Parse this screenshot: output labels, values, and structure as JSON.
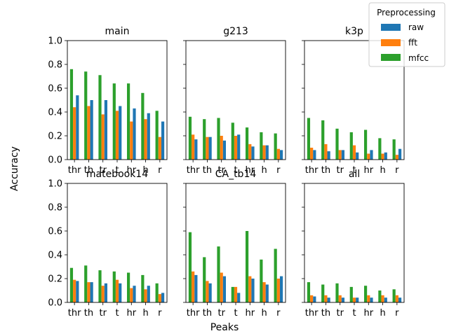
{
  "figure": {
    "ylabel": "Accuracy",
    "xlabel": "Peaks",
    "legend": {
      "title": "Preprocessing",
      "placement": "top-right",
      "entries": [
        {
          "name": "raw",
          "color": "#1f77b4"
        },
        {
          "name": "fft",
          "color": "#ff7f0e"
        },
        {
          "name": "mfcc",
          "color": "#2ca02c"
        }
      ]
    }
  },
  "chart_data": [
    {
      "type": "bar",
      "title": "main",
      "categories": [
        "thr",
        "th",
        "tr",
        "t",
        "hr",
        "h",
        "r"
      ],
      "ylim": [
        0,
        1
      ],
      "yticks": [
        "0.0",
        "0.2",
        "0.4",
        "0.6",
        "0.8",
        "1.0"
      ],
      "series": [
        {
          "name": "mfcc",
          "values": [
            0.76,
            0.74,
            0.71,
            0.64,
            0.64,
            0.56,
            0.41
          ]
        },
        {
          "name": "fft",
          "values": [
            0.44,
            0.45,
            0.38,
            0.41,
            0.32,
            0.34,
            0.19
          ]
        },
        {
          "name": "raw",
          "values": [
            0.54,
            0.5,
            0.5,
            0.45,
            0.43,
            0.39,
            0.32
          ]
        }
      ]
    },
    {
      "type": "bar",
      "title": "g213",
      "categories": [
        "thr",
        "th",
        "tr",
        "t",
        "hr",
        "h",
        "r"
      ],
      "ylim": [
        0,
        1
      ],
      "yticks": [
        "0.0",
        "0.2",
        "0.4",
        "0.6",
        "0.8",
        "1.0"
      ],
      "series": [
        {
          "name": "mfcc",
          "values": [
            0.36,
            0.34,
            0.35,
            0.31,
            0.27,
            0.23,
            0.22
          ]
        },
        {
          "name": "fft",
          "values": [
            0.21,
            0.19,
            0.2,
            0.2,
            0.13,
            0.12,
            0.09
          ]
        },
        {
          "name": "raw",
          "values": [
            0.17,
            0.19,
            0.16,
            0.21,
            0.11,
            0.12,
            0.08
          ]
        }
      ]
    },
    {
      "type": "bar",
      "title": "k3p",
      "categories": [
        "thr",
        "th",
        "tr",
        "t",
        "hr",
        "h",
        "r"
      ],
      "ylim": [
        0,
        1
      ],
      "yticks": [
        "0.0",
        "0.2",
        "0.4",
        "0.6",
        "0.8",
        "1.0"
      ],
      "series": [
        {
          "name": "mfcc",
          "values": [
            0.35,
            0.33,
            0.26,
            0.23,
            0.25,
            0.18,
            0.17
          ]
        },
        {
          "name": "fft",
          "values": [
            0.1,
            0.13,
            0.08,
            0.12,
            0.05,
            0.05,
            0.04
          ]
        },
        {
          "name": "raw",
          "values": [
            0.08,
            0.07,
            0.08,
            0.06,
            0.08,
            0.06,
            0.09
          ]
        }
      ]
    },
    {
      "type": "bar",
      "title": "matebook14",
      "categories": [
        "thr",
        "th",
        "tr",
        "t",
        "hr",
        "h",
        "r"
      ],
      "ylim": [
        0,
        1
      ],
      "yticks": [
        "0.0",
        "0.2",
        "0.4",
        "0.6",
        "0.8",
        "1.0"
      ],
      "series": [
        {
          "name": "mfcc",
          "values": [
            0.29,
            0.31,
            0.27,
            0.26,
            0.25,
            0.23,
            0.16
          ]
        },
        {
          "name": "fft",
          "values": [
            0.19,
            0.17,
            0.14,
            0.19,
            0.12,
            0.11,
            0.07
          ]
        },
        {
          "name": "raw",
          "values": [
            0.18,
            0.17,
            0.16,
            0.16,
            0.14,
            0.14,
            0.08
          ]
        }
      ]
    },
    {
      "type": "bar",
      "title": "CA_tb14",
      "categories": [
        "thr",
        "th",
        "tr",
        "t",
        "hr",
        "h",
        "r"
      ],
      "ylim": [
        0,
        1
      ],
      "yticks": [
        "0.0",
        "0.2",
        "0.4",
        "0.6",
        "0.8",
        "1.0"
      ],
      "series": [
        {
          "name": "mfcc",
          "values": [
            0.59,
            0.38,
            0.47,
            0.13,
            0.6,
            0.36,
            0.45
          ]
        },
        {
          "name": "fft",
          "values": [
            0.26,
            0.18,
            0.25,
            0.13,
            0.22,
            0.17,
            0.2
          ]
        },
        {
          "name": "raw",
          "values": [
            0.23,
            0.16,
            0.22,
            0.08,
            0.2,
            0.15,
            0.22
          ]
        }
      ]
    },
    {
      "type": "bar",
      "title": "all",
      "categories": [
        "thr",
        "th",
        "tr",
        "t",
        "hr",
        "h",
        "r"
      ],
      "ylim": [
        0,
        1
      ],
      "yticks": [
        "0.0",
        "0.2",
        "0.4",
        "0.6",
        "0.8",
        "1.0"
      ],
      "series": [
        {
          "name": "mfcc",
          "values": [
            0.17,
            0.15,
            0.16,
            0.13,
            0.14,
            0.1,
            0.11
          ]
        },
        {
          "name": "fft",
          "values": [
            0.06,
            0.06,
            0.06,
            0.04,
            0.06,
            0.06,
            0.06
          ]
        },
        {
          "name": "raw",
          "values": [
            0.05,
            0.04,
            0.04,
            0.04,
            0.04,
            0.04,
            0.04
          ]
        }
      ]
    }
  ]
}
